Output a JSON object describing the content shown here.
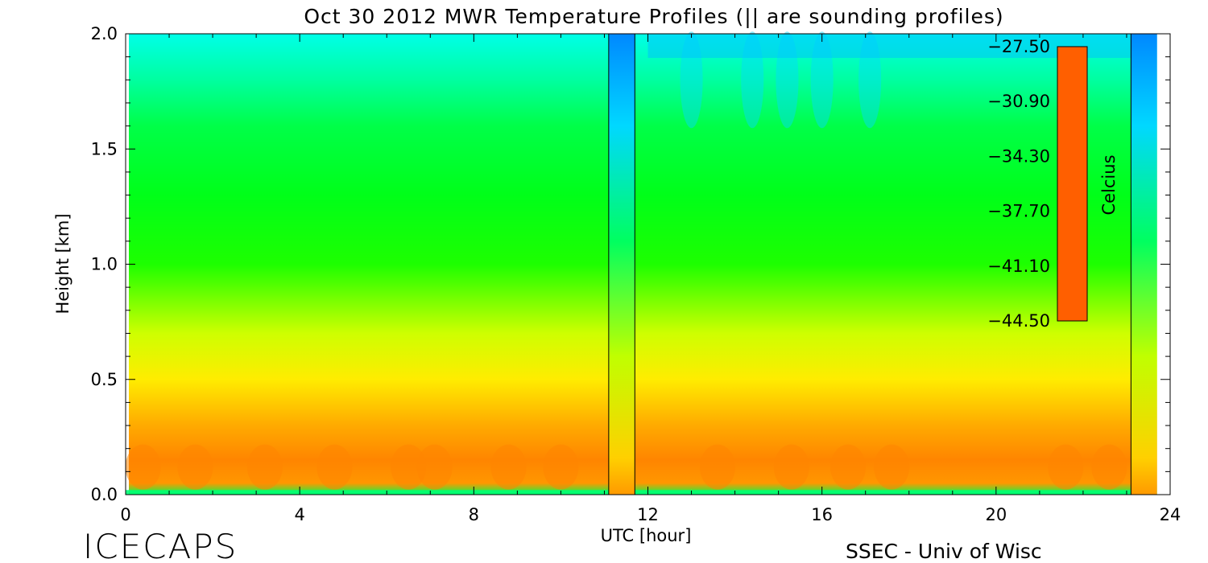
{
  "chart_data": {
    "type": "heatmap",
    "title": "Oct 30 2012 MWR Temperature Profiles (|| are sounding profiles)",
    "xlabel": "UTC [hour]",
    "ylabel": "Height [km]",
    "xlim": [
      0,
      24
    ],
    "ylim": [
      0,
      2.0
    ],
    "x_ticks": [
      "0",
      "4",
      "8",
      "12",
      "16",
      "20",
      "24"
    ],
    "y_ticks": [
      "0.0",
      "0.5",
      "1.0",
      "1.5",
      "2.0"
    ],
    "sounding_times_hour": [
      11.1,
      11.7,
      23.1
    ],
    "colorbar": {
      "label": "Celcius",
      "range": [
        -44.5,
        -27.5
      ],
      "ticks": [
        "-27.50",
        "-30.90",
        "-34.30",
        "-37.70",
        "-41.10",
        "-44.50"
      ],
      "colors": [
        "#ff5f00",
        "#ff9900",
        "#ffd200",
        "#ffff00",
        "#c8ff00",
        "#00ff00",
        "#00ff90",
        "#00ffff",
        "#00aaff",
        "#0050ff",
        "#0000ff",
        "#4400aa"
      ]
    },
    "temperature_profile": {
      "height_km": [
        0.0,
        0.05,
        0.15,
        0.3,
        0.5,
        0.7,
        1.0,
        1.3,
        1.6,
        1.8,
        2.0
      ],
      "temp_c": [
        -36.0,
        -29.0,
        -28.5,
        -29.5,
        -31.5,
        -33.5,
        -35.0,
        -35.5,
        -36.0,
        -37.0,
        -38.0
      ]
    }
  },
  "footer": {
    "left": "ICECAPS",
    "right": "SSEC - Univ of Wisc"
  }
}
